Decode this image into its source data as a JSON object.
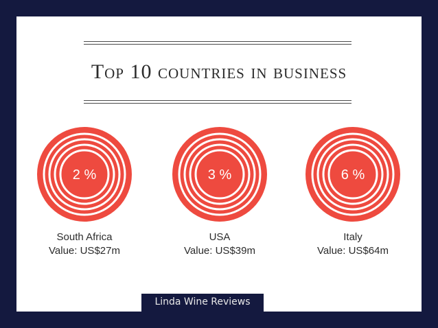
{
  "title": "Top 10 countries in business",
  "footer": "Linda Wine Reviews",
  "colors": {
    "background": "#14193f",
    "ring": "#ee4a3f",
    "text": "#2b2b2b"
  },
  "stats": [
    {
      "percent": "2 %",
      "country": "South Africa",
      "value": "Value: US$27m"
    },
    {
      "percent": "3 %",
      "country": "USA",
      "value": "Value: US$39m"
    },
    {
      "percent": "6 %",
      "country": "Italy",
      "value": "Value: US$64m"
    }
  ]
}
